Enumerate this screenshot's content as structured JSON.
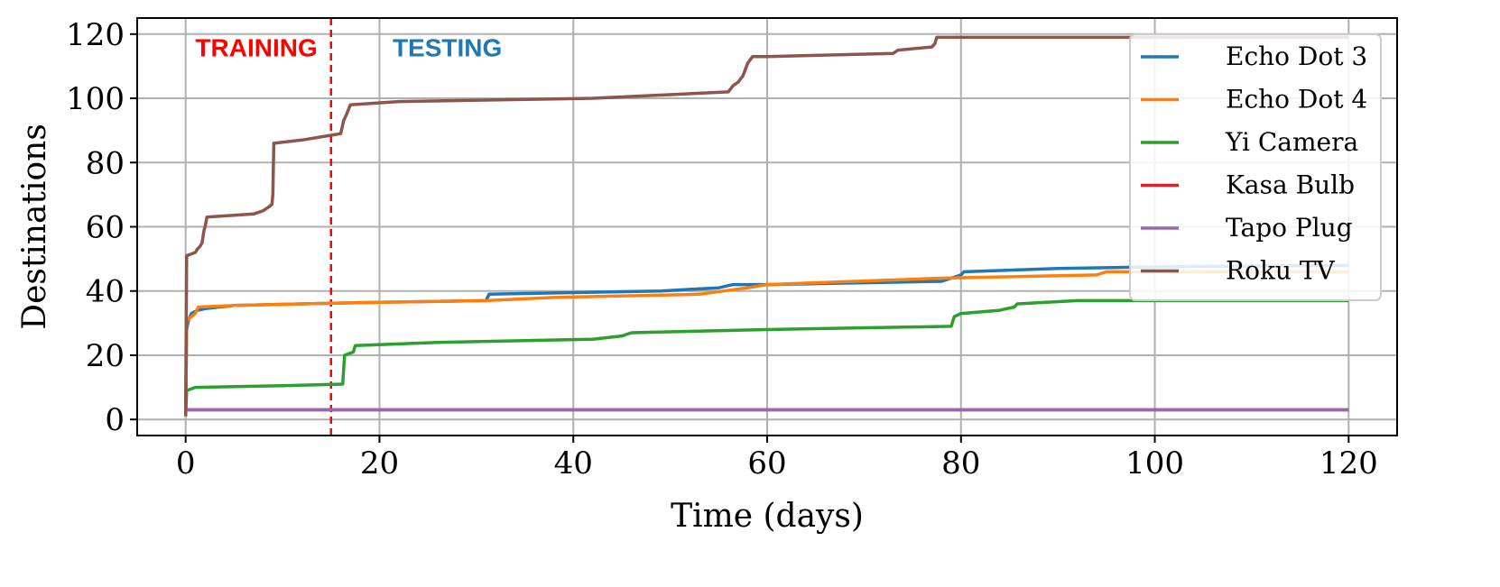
{
  "chart_data": {
    "type": "line",
    "xlabel": "Time (days)",
    "ylabel": "Destinations",
    "xlim": [
      -5,
      125
    ],
    "ylim": [
      -5,
      125
    ],
    "xticks": [
      0,
      20,
      40,
      60,
      80,
      100,
      120
    ],
    "yticks": [
      0,
      20,
      40,
      60,
      80,
      100,
      120
    ],
    "grid": true,
    "legend_position": "top-right",
    "split_line": {
      "x": 15,
      "color": "#ff0000",
      "style": "dashed"
    },
    "phase_labels": [
      {
        "text": "TRAINING",
        "x": 7.3,
        "y": 113,
        "color": "#ff0000"
      },
      {
        "text": "TESTING",
        "x": 27,
        "y": 113,
        "color": "#1f77b4"
      }
    ],
    "series": [
      {
        "name": "Echo Dot 3",
        "color": "#1f77b4",
        "x": [
          0,
          0.1,
          0.3,
          0.6,
          1.2,
          2,
          5,
          12,
          20,
          31,
          31.3,
          40,
          49,
          55,
          56.5,
          60,
          78,
          80,
          80.3,
          90,
          100,
          120
        ],
        "y": [
          1,
          28,
          31,
          33,
          34,
          34.5,
          35.5,
          36,
          36.5,
          37,
          39,
          39.5,
          40,
          41,
          42,
          42,
          43,
          45,
          46,
          47,
          47.5,
          48
        ]
      },
      {
        "name": "Echo Dot 4",
        "color": "#ff7f0e",
        "x": [
          0,
          0.1,
          0.4,
          1,
          1.3,
          5,
          12,
          20,
          31,
          38,
          53,
          55.5,
          58,
          60,
          78,
          94,
          94.5,
          95,
          120
        ],
        "y": [
          1,
          31,
          31.5,
          33,
          35,
          35.5,
          36,
          36.5,
          37,
          38,
          39,
          40,
          41,
          42,
          44,
          45,
          45.5,
          46,
          46
        ]
      },
      {
        "name": "Yi Camera",
        "color": "#2ca02c",
        "x": [
          0,
          0.1,
          1,
          10,
          16.2,
          16.4,
          17.3,
          17.5,
          26,
          42,
          45,
          46,
          60,
          79,
          79.3,
          80,
          84,
          85.5,
          85.8,
          92,
          120
        ],
        "y": [
          1,
          9,
          10,
          10.5,
          11,
          20,
          21,
          23,
          24,
          25,
          26,
          27,
          28,
          29,
          32,
          33,
          34,
          35,
          36,
          37,
          37
        ]
      },
      {
        "name": "Kasa Bulb",
        "color": "#d62728",
        "x": [
          0,
          120
        ],
        "y": [
          3,
          3
        ]
      },
      {
        "name": "Tapo Plug",
        "color": "#9467bd",
        "x": [
          0,
          120
        ],
        "y": [
          3,
          3
        ]
      },
      {
        "name": "Roku TV",
        "color": "#8c564b",
        "x": [
          0,
          0.1,
          1,
          1.2,
          1.5,
          1.7,
          1.9,
          2,
          2.2,
          7,
          8,
          8.5,
          8.9,
          9,
          9.1,
          12,
          15,
          16,
          16.3,
          16.6,
          17,
          22,
          42,
          56,
          56.5,
          57,
          57.5,
          58,
          58.5,
          60,
          73,
          73.5,
          77,
          77.3,
          77.5,
          78,
          120
        ],
        "y": [
          1,
          51,
          52,
          53,
          54,
          55,
          59,
          60,
          63,
          64,
          65,
          66,
          67,
          70,
          86,
          87,
          88.5,
          89,
          93,
          95,
          98,
          99,
          100,
          102,
          104,
          105,
          107,
          111,
          113,
          113,
          114,
          115,
          116,
          117,
          119,
          119,
          119
        ]
      }
    ]
  }
}
